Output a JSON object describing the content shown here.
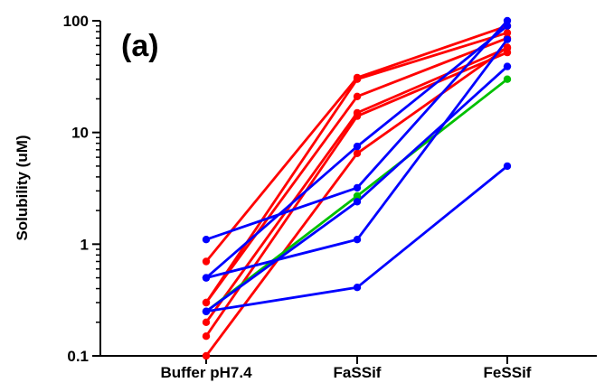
{
  "chart_data": {
    "type": "line",
    "title": "",
    "panel_label": "(a)",
    "xlabel": "",
    "ylabel": "Solubility (uM)",
    "yscale": "log",
    "ylim": [
      0.1,
      100
    ],
    "yticks": [
      "0.1",
      "1",
      "10",
      "100"
    ],
    "categories": [
      "Buffer pH7.4",
      "FaSSif",
      "FeSSif"
    ],
    "grid": false,
    "legend": "none",
    "series": [
      {
        "color": "#ff0000",
        "values": [
          0.7,
          31,
          90
        ]
      },
      {
        "color": "#ff0000",
        "values": [
          0.3,
          30,
          78
        ]
      },
      {
        "color": "#ff0000",
        "values": [
          0.3,
          21,
          70
        ]
      },
      {
        "color": "#ff0000",
        "values": [
          0.2,
          15,
          57
        ]
      },
      {
        "color": "#ff0000",
        "values": [
          0.15,
          14,
          52
        ]
      },
      {
        "color": "#ff0000",
        "values": [
          0.1,
          6.5,
          58
        ]
      },
      {
        "color": "#00c000",
        "values": [
          0.25,
          2.7,
          30
        ]
      },
      {
        "color": "#0000ff",
        "values": [
          1.1,
          3.2,
          100
        ]
      },
      {
        "color": "#0000ff",
        "values": [
          0.5,
          7.5,
          90
        ]
      },
      {
        "color": "#0000ff",
        "values": [
          0.5,
          1.1,
          68
        ]
      },
      {
        "color": "#0000ff",
        "values": [
          0.25,
          2.4,
          39
        ]
      },
      {
        "color": "#0000ff",
        "values": [
          0.25,
          0.41,
          5
        ]
      }
    ]
  }
}
